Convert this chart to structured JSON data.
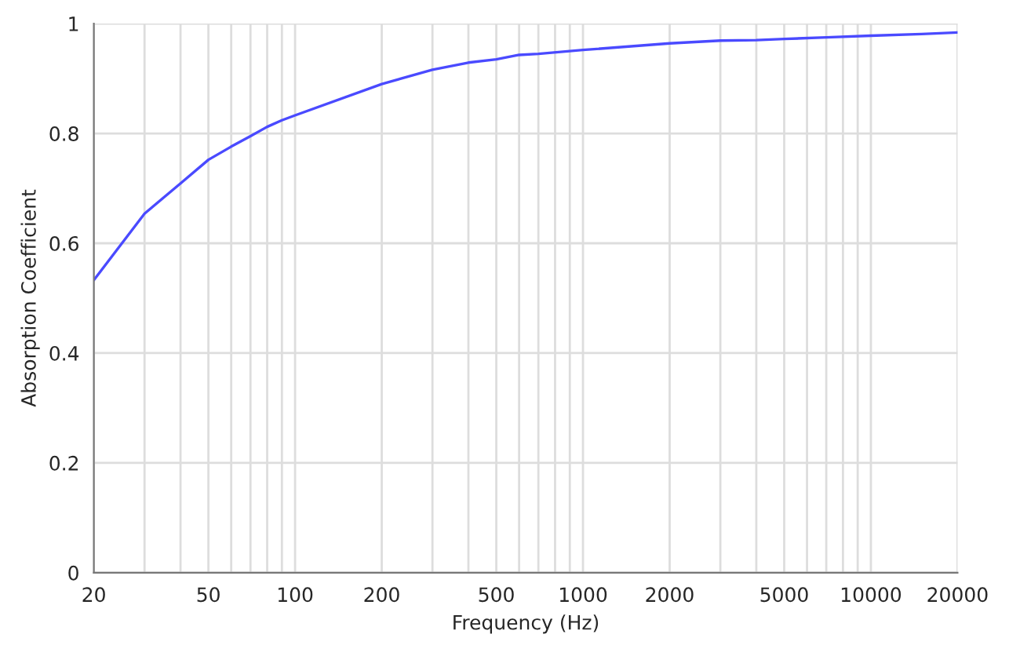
{
  "chart_data": {
    "type": "line",
    "xlabel": "Frequency (Hz)",
    "ylabel": "Absorption Coefficient",
    "log": "x",
    "x": [
      20,
      30,
      40,
      50,
      60,
      70,
      80,
      90,
      100,
      200,
      300,
      400,
      500,
      600,
      700,
      1000,
      2000,
      3000,
      4000,
      5000,
      7000,
      10000,
      15000,
      20000
    ],
    "series": [
      {
        "color": "#4a4aff",
        "values": [
          0.533,
          0.654,
          0.709,
          0.752,
          0.776,
          0.795,
          0.812,
          0.824,
          0.833,
          0.89,
          0.916,
          0.929,
          0.935,
          0.943,
          0.945,
          0.952,
          0.964,
          0.969,
          0.97,
          0.972,
          0.975,
          0.978,
          0.981,
          0.984
        ]
      }
    ],
    "xlim": [
      20,
      20000
    ],
    "ylim": [
      0,
      1
    ],
    "xticks": [
      20,
      {
        "value": 30,
        "label": null
      },
      {
        "value": 40,
        "label": null
      },
      50,
      {
        "value": 60,
        "label": null
      },
      {
        "value": 70,
        "label": null
      },
      {
        "value": 80,
        "label": null
      },
      {
        "value": 90,
        "label": null
      },
      100,
      200,
      {
        "value": 300,
        "label": null
      },
      {
        "value": 400,
        "label": null
      },
      500,
      {
        "value": 600,
        "label": null
      },
      {
        "value": 700,
        "label": null
      },
      {
        "value": 800,
        "label": null
      },
      {
        "value": 900,
        "label": null
      },
      1000,
      2000,
      {
        "value": 3000,
        "label": null
      },
      {
        "value": 4000,
        "label": null
      },
      5000,
      {
        "value": 6000,
        "label": null
      },
      {
        "value": 7000,
        "label": null
      },
      {
        "value": 8000,
        "label": null
      },
      {
        "value": 9000,
        "label": null
      },
      10000,
      20000
    ],
    "yticks": [
      0,
      0.2,
      0.4,
      0.6,
      0.8,
      1
    ],
    "grid": true,
    "legend": false,
    "marker": "none",
    "line_style": "solid"
  }
}
